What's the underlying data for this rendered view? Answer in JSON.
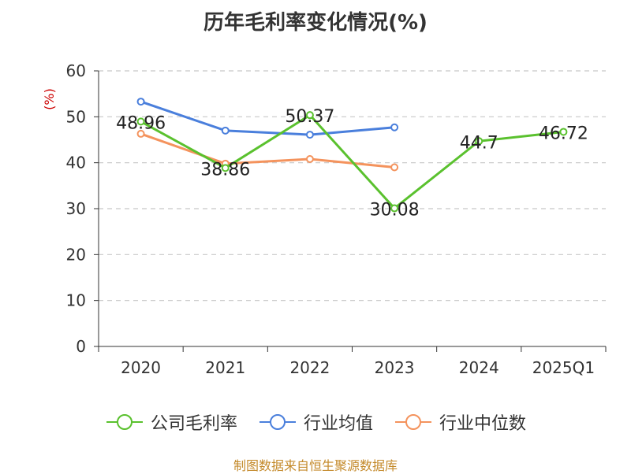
{
  "chart_data": {
    "type": "line",
    "title": "历年毛利率变化情况(%)",
    "ylabel": "(%)",
    "categories": [
      "2020",
      "2021",
      "2022",
      "2023",
      "2024",
      "2025Q1"
    ],
    "ylim": [
      0,
      60
    ],
    "yticks": [
      0,
      10,
      20,
      30,
      40,
      50,
      60
    ],
    "grid": true,
    "legend_position": "bottom",
    "series": [
      {
        "name": "公司毛利率",
        "color": "#5ac12e",
        "values": [
          48.96,
          38.86,
          50.37,
          30.08,
          44.7,
          46.72
        ],
        "labels": [
          "48.96",
          "38.86",
          "50.37",
          "30.08",
          "44.7",
          "46.72"
        ]
      },
      {
        "name": "行业均值",
        "color": "#4a7fdc",
        "values": [
          53.3,
          47.0,
          46.1,
          47.7,
          null,
          null
        ]
      },
      {
        "name": "行业中位数",
        "color": "#f4935d",
        "values": [
          46.3,
          39.8,
          40.8,
          39.0,
          null,
          null
        ]
      }
    ]
  },
  "source": "制图数据来自恒生聚源数据库"
}
